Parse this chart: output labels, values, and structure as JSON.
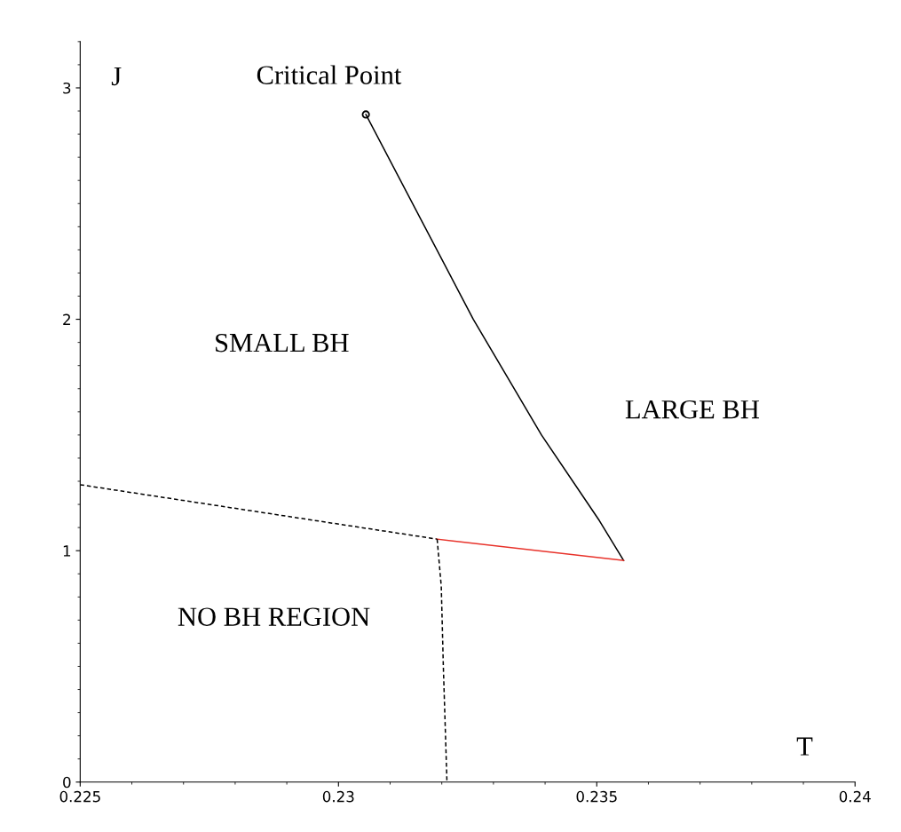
{
  "chart_data": {
    "type": "line",
    "xlabel": "T",
    "ylabel": "J",
    "xlim": [
      0.225,
      0.24
    ],
    "xticks": [
      0.225,
      0.23,
      0.235,
      0.24
    ],
    "ylim": [
      0,
      3.2
    ],
    "yticks": [
      0,
      1,
      2,
      3
    ],
    "grid": false,
    "legend": false,
    "series": [
      {
        "color": "#000000",
        "x": [
          0.23053,
          0.23261,
          0.23393,
          0.23505,
          0.23552
        ],
        "values": [
          2.885,
          2.0,
          1.5,
          1.13,
          0.958
        ],
        "line_style": "solid"
      },
      {
        "color": "#000000",
        "x": [
          0.225,
          0.23191
        ],
        "values": [
          1.285,
          1.05
        ],
        "line_style": "dashed"
      },
      {
        "color": "#e8322a",
        "x": [
          0.23191,
          0.23552
        ],
        "values": [
          1.05,
          0.958
        ],
        "line_style": "solid"
      },
      {
        "color": "#000000",
        "x": [
          0.23191,
          0.23199,
          0.23203,
          0.2321
        ],
        "values": [
          1.05,
          0.846,
          0.5,
          0.0
        ],
        "line_style": "dashed"
      },
      {
        "type": "scatter",
        "color": "#000000",
        "x": [
          0.23053
        ],
        "values": [
          2.885
        ],
        "marker": "circle"
      }
    ],
    "annotations": [
      {
        "text": "Critical Point",
        "x": 0.23053,
        "y": 2.885
      },
      "SMALL BH",
      "LARGE BH",
      "NO BH REGION"
    ]
  }
}
